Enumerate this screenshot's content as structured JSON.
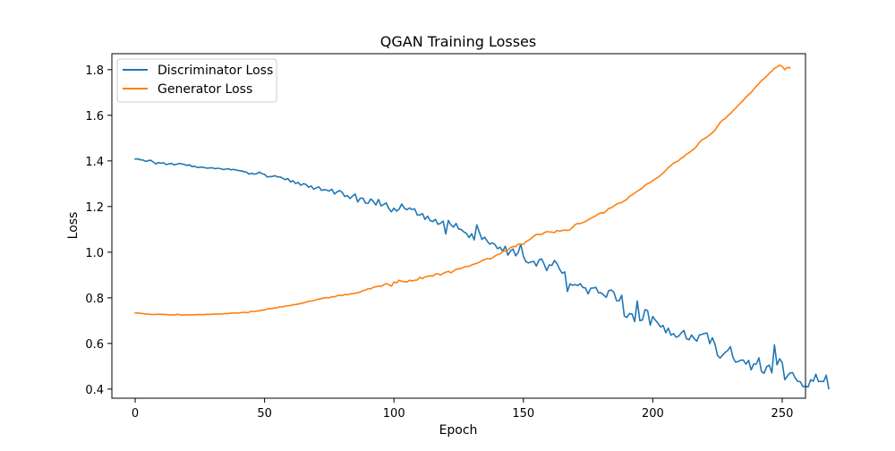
{
  "chart_data": {
    "type": "line",
    "title": "QGAN Training Losses",
    "xlabel": "Epoch",
    "ylabel": "Loss",
    "xlim": [
      -9,
      259
    ],
    "ylim": [
      0.36,
      1.87
    ],
    "xticks": [
      0,
      50,
      100,
      150,
      200,
      250
    ],
    "yticks": [
      0.4,
      0.6,
      0.8,
      1.0,
      1.2,
      1.4,
      1.6,
      1.8
    ],
    "xtick_labels": [
      "0",
      "50",
      "100",
      "150",
      "200",
      "250"
    ],
    "ytick_labels": [
      "0.4",
      "0.6",
      "0.8",
      "1.0",
      "1.2",
      "1.4",
      "1.6",
      "1.8"
    ],
    "grid": false,
    "legend": {
      "position": "top-left"
    },
    "series": [
      {
        "name": "Discriminator Loss",
        "color": "#1f77b4",
        "x_start": 0,
        "x_step": 1,
        "values": [
          1.408,
          1.409,
          1.405,
          1.404,
          1.398,
          1.401,
          1.403,
          1.395,
          1.387,
          1.393,
          1.39,
          1.392,
          1.384,
          1.387,
          1.389,
          1.383,
          1.385,
          1.389,
          1.387,
          1.384,
          1.38,
          1.383,
          1.375,
          1.377,
          1.371,
          1.372,
          1.373,
          1.37,
          1.368,
          1.37,
          1.369,
          1.366,
          1.368,
          1.366,
          1.362,
          1.364,
          1.366,
          1.361,
          1.363,
          1.36,
          1.358,
          1.356,
          1.353,
          1.351,
          1.342,
          1.346,
          1.342,
          1.344,
          1.351,
          1.344,
          1.341,
          1.33,
          1.331,
          1.332,
          1.335,
          1.33,
          1.33,
          1.324,
          1.318,
          1.323,
          1.308,
          1.313,
          1.301,
          1.306,
          1.293,
          1.3,
          1.297,
          1.285,
          1.29,
          1.276,
          1.282,
          1.286,
          1.271,
          1.274,
          1.272,
          1.268,
          1.276,
          1.255,
          1.264,
          1.27,
          1.262,
          1.244,
          1.248,
          1.235,
          1.246,
          1.255,
          1.22,
          1.237,
          1.237,
          1.215,
          1.214,
          1.233,
          1.223,
          1.207,
          1.231,
          1.203,
          1.209,
          1.216,
          1.192,
          1.177,
          1.193,
          1.18,
          1.189,
          1.211,
          1.193,
          1.186,
          1.194,
          1.187,
          1.19,
          1.163,
          1.163,
          1.169,
          1.144,
          1.158,
          1.138,
          1.134,
          1.144,
          1.122,
          1.127,
          1.136,
          1.08,
          1.139,
          1.12,
          1.11,
          1.126,
          1.101,
          1.099,
          1.089,
          1.082,
          1.064,
          1.081,
          1.054,
          1.12,
          1.087,
          1.056,
          1.066,
          1.049,
          1.035,
          1.041,
          1.034,
          1.015,
          1.022,
          1.004,
          1.026,
          0.987,
          1.005,
          1.014,
          0.984,
          0.999,
          1.036,
          0.982,
          0.958,
          0.953,
          0.957,
          0.96,
          0.939,
          0.965,
          0.971,
          0.948,
          0.919,
          0.944,
          0.942,
          0.964,
          0.95,
          0.925,
          0.908,
          0.913,
          0.828,
          0.861,
          0.855,
          0.858,
          0.854,
          0.862,
          0.845,
          0.843,
          0.817,
          0.842,
          0.843,
          0.846,
          0.822,
          0.822,
          0.812,
          0.802,
          0.832,
          0.834,
          0.823,
          0.787,
          0.787,
          0.811,
          0.72,
          0.714,
          0.731,
          0.729,
          0.696,
          0.786,
          0.7,
          0.703,
          0.748,
          0.744,
          0.68,
          0.718,
          0.702,
          0.688,
          0.672,
          0.679,
          0.647,
          0.667,
          0.636,
          0.643,
          0.627,
          0.632,
          0.646,
          0.657,
          0.621,
          0.616,
          0.637,
          0.621,
          0.61,
          0.637,
          0.64,
          0.644,
          0.645,
          0.599,
          0.625,
          0.598,
          0.548,
          0.536,
          0.549,
          0.561,
          0.57,
          0.586,
          0.538,
          0.518,
          0.521,
          0.527,
          0.527,
          0.509,
          0.526,
          0.484,
          0.51,
          0.509,
          0.537,
          0.477,
          0.469,
          0.498,
          0.505,
          0.471,
          0.594,
          0.506,
          0.533,
          0.516,
          0.441,
          0.457,
          0.47,
          0.472,
          0.449,
          0.434,
          0.432,
          0.411,
          0.412,
          0.409,
          0.441,
          0.434,
          0.465,
          0.433,
          0.434,
          0.433,
          0.461,
          0.402
        ]
      },
      {
        "name": "Generator Loss",
        "color": "#ff7f0e",
        "x_start": 0,
        "x_step": 1,
        "values": [
          0.733,
          0.734,
          0.732,
          0.731,
          0.729,
          0.729,
          0.727,
          0.727,
          0.727,
          0.728,
          0.728,
          0.727,
          0.727,
          0.725,
          0.726,
          0.724,
          0.727,
          0.727,
          0.724,
          0.725,
          0.725,
          0.726,
          0.725,
          0.726,
          0.726,
          0.727,
          0.726,
          0.727,
          0.728,
          0.727,
          0.728,
          0.729,
          0.729,
          0.729,
          0.73,
          0.731,
          0.731,
          0.733,
          0.733,
          0.734,
          0.733,
          0.735,
          0.737,
          0.735,
          0.737,
          0.741,
          0.74,
          0.742,
          0.743,
          0.746,
          0.747,
          0.751,
          0.753,
          0.753,
          0.756,
          0.757,
          0.761,
          0.76,
          0.764,
          0.765,
          0.766,
          0.77,
          0.77,
          0.773,
          0.775,
          0.778,
          0.781,
          0.785,
          0.786,
          0.788,
          0.792,
          0.794,
          0.797,
          0.799,
          0.801,
          0.8,
          0.805,
          0.804,
          0.809,
          0.811,
          0.81,
          0.815,
          0.813,
          0.817,
          0.818,
          0.82,
          0.822,
          0.826,
          0.831,
          0.834,
          0.84,
          0.839,
          0.846,
          0.848,
          0.852,
          0.85,
          0.857,
          0.862,
          0.858,
          0.851,
          0.869,
          0.866,
          0.877,
          0.872,
          0.871,
          0.869,
          0.877,
          0.874,
          0.877,
          0.878,
          0.89,
          0.884,
          0.892,
          0.894,
          0.897,
          0.895,
          0.904,
          0.905,
          0.9,
          0.907,
          0.912,
          0.916,
          0.91,
          0.917,
          0.925,
          0.927,
          0.929,
          0.934,
          0.938,
          0.938,
          0.944,
          0.948,
          0.951,
          0.956,
          0.963,
          0.968,
          0.972,
          0.97,
          0.975,
          0.983,
          0.99,
          0.992,
          1.003,
          1.006,
          1.009,
          1.02,
          1.025,
          1.024,
          1.036,
          1.034,
          1.035,
          1.046,
          1.052,
          1.06,
          1.07,
          1.078,
          1.078,
          1.077,
          1.085,
          1.09,
          1.089,
          1.088,
          1.086,
          1.095,
          1.092,
          1.095,
          1.097,
          1.095,
          1.098,
          1.109,
          1.121,
          1.126,
          1.125,
          1.13,
          1.135,
          1.142,
          1.148,
          1.154,
          1.16,
          1.168,
          1.173,
          1.171,
          1.181,
          1.192,
          1.195,
          1.203,
          1.21,
          1.215,
          1.218,
          1.225,
          1.232,
          1.245,
          1.251,
          1.259,
          1.267,
          1.274,
          1.282,
          1.293,
          1.301,
          1.305,
          1.314,
          1.321,
          1.328,
          1.337,
          1.347,
          1.358,
          1.371,
          1.38,
          1.39,
          1.396,
          1.401,
          1.412,
          1.418,
          1.43,
          1.435,
          1.445,
          1.453,
          1.465,
          1.481,
          1.492,
          1.498,
          1.505,
          1.514,
          1.523,
          1.535,
          1.552,
          1.568,
          1.579,
          1.586,
          1.598,
          1.608,
          1.62,
          1.631,
          1.643,
          1.655,
          1.666,
          1.68,
          1.691,
          1.7,
          1.714,
          1.727,
          1.739,
          1.752,
          1.761,
          1.772,
          1.784,
          1.794,
          1.806,
          1.812,
          1.82,
          1.814,
          1.8,
          1.81,
          1.808
        ]
      }
    ]
  }
}
